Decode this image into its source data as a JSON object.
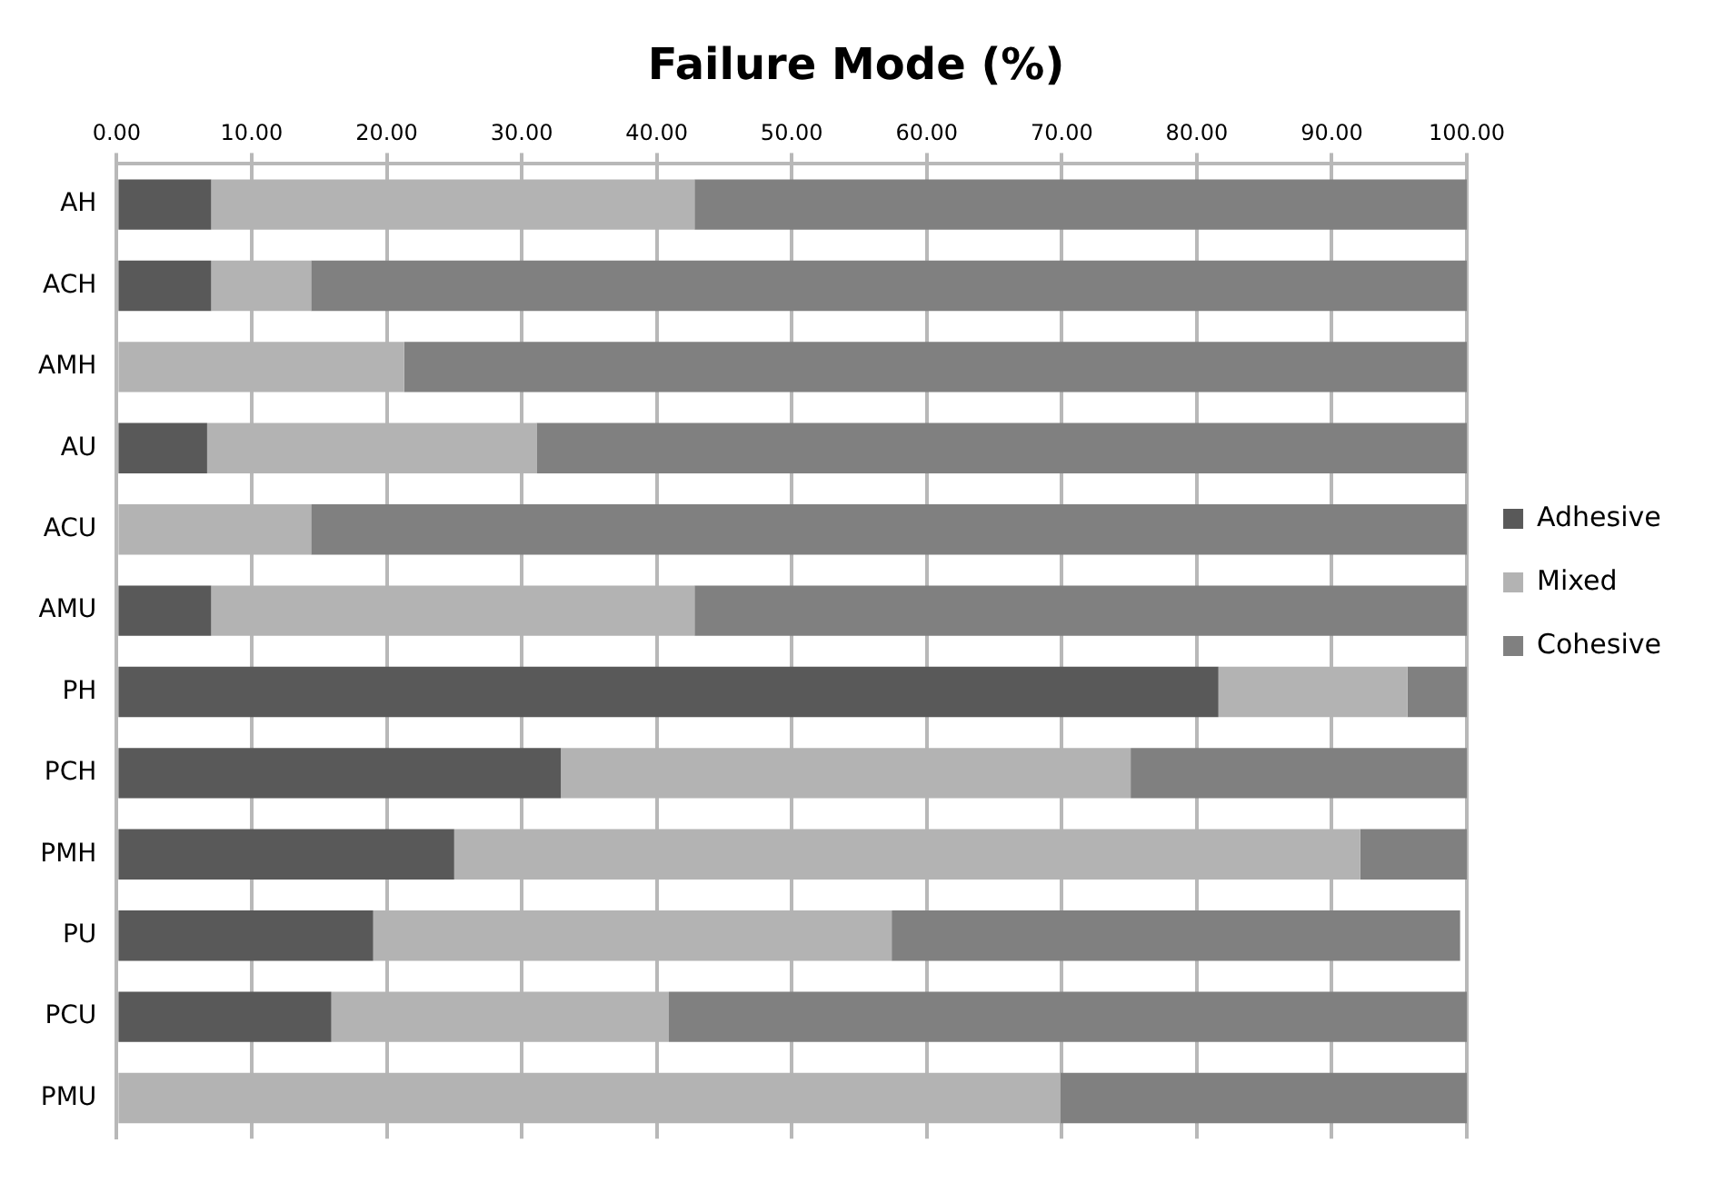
{
  "chart_data": {
    "type": "bar",
    "title": "Failure Mode (%)",
    "orientation": "horizontal",
    "stacked": true,
    "categories": [
      "AH",
      "ACH",
      "AMH",
      "AU",
      "ACU",
      "AMU",
      "PH",
      "PCH",
      "PMH",
      "PU",
      "PCU",
      "PMU"
    ],
    "series": [
      {
        "name": "Adhesive",
        "color": "#595959",
        "values": [
          7.0,
          7.0,
          0,
          6.7,
          0,
          7.0,
          81.6,
          32.9,
          25.0,
          19.0,
          15.9,
          0
        ]
      },
      {
        "name": "Mixed",
        "color": "#b3b3b3",
        "values": [
          35.8,
          7.4,
          21.3,
          24.4,
          14.4,
          35.8,
          14.0,
          42.2,
          67.1,
          38.4,
          25.0,
          69.9
        ]
      },
      {
        "name": "Cohesive",
        "color": "#808080",
        "values": [
          57.2,
          85.6,
          78.7,
          68.9,
          85.6,
          57.2,
          4.4,
          24.9,
          7.9,
          42.1,
          59.1,
          30.1
        ]
      }
    ],
    "xlim": [
      0,
      100
    ],
    "xticks": [
      {
        "value": 0,
        "label": "0.00"
      },
      {
        "value": 10,
        "label": "10.00"
      },
      {
        "value": 20,
        "label": "20.00"
      },
      {
        "value": 30,
        "label": "30.00"
      },
      {
        "value": 40,
        "label": "40.00"
      },
      {
        "value": 50,
        "label": "50.00"
      },
      {
        "value": 60,
        "label": "60.00"
      },
      {
        "value": 70,
        "label": "70.00"
      },
      {
        "value": 80,
        "label": "80.00"
      },
      {
        "value": 90,
        "label": "90.00"
      },
      {
        "value": 100,
        "label": "100.00"
      }
    ],
    "grid": "x",
    "legend": "right"
  }
}
